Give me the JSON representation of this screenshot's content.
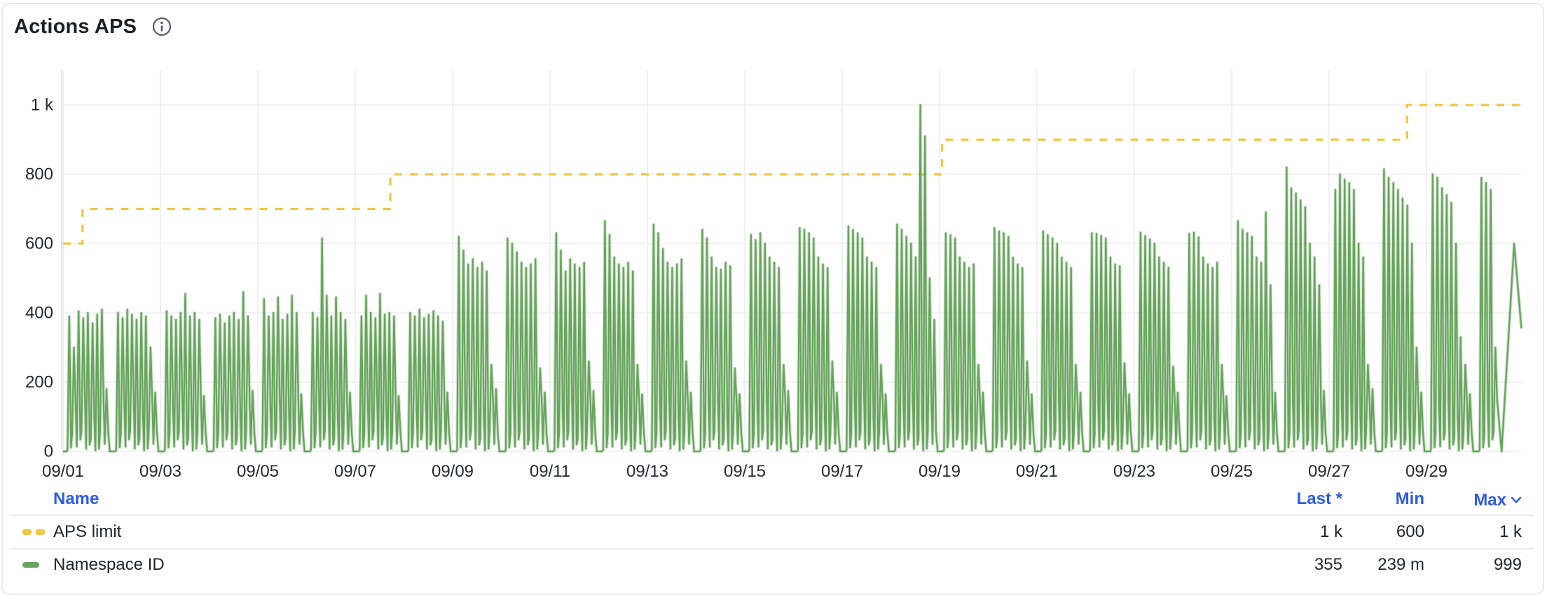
{
  "panel": {
    "title": "Actions APS",
    "info_icon": "info-circle-icon"
  },
  "colors": {
    "aps_limit": "#eec83f",
    "namespace_id": "#68a45e",
    "header_blue": "#2d5ce5",
    "grid": "#ebedf0",
    "axis_line": "#e3e5e8",
    "text_dark": "#242930",
    "card_border": "#e7e9ec"
  },
  "chart_data": {
    "type": "line",
    "title": "Actions APS",
    "grid": true,
    "x_axis": {
      "tick_labels": [
        "09/01",
        "09/03",
        "09/05",
        "09/07",
        "09/09",
        "09/11",
        "09/13",
        "09/15",
        "09/17",
        "09/19",
        "09/21",
        "09/23",
        "09/25",
        "09/27",
        "09/29"
      ],
      "days_per_tick": 2,
      "t_start": 0,
      "t_end": 29.95
    },
    "y_axis": {
      "tick_labels": [
        "0",
        "200",
        "400",
        "600",
        "800",
        "1 k"
      ],
      "tick_values": [
        0,
        200,
        400,
        600,
        800,
        1000
      ],
      "ylim": [
        0,
        1100
      ]
    },
    "series": [
      {
        "name": "APS limit",
        "type": "step",
        "style": "dashed",
        "color": "#eec83f",
        "steps": [
          {
            "t": 0.0,
            "value": 600
          },
          {
            "t": 0.4,
            "value": 700
          },
          {
            "t": 6.72,
            "value": 800
          },
          {
            "t": 18.05,
            "value": 900
          },
          {
            "t": 27.6,
            "value": 1000
          }
        ],
        "t_end": 29.95,
        "last": "1 k",
        "min": "600",
        "max": "1 k"
      },
      {
        "name": "Namespace ID",
        "type": "spiky-line",
        "color": "#68a45e",
        "cluster_span": 0.86,
        "valleys": [
          12,
          130,
          35,
          150,
          20,
          95,
          8,
          140,
          55
        ],
        "daily_peaks": [
          [
            390,
            300,
            405,
            385,
            400,
            370,
            395,
            410,
            180
          ],
          [
            400,
            385,
            410,
            395,
            380,
            400,
            390,
            300,
            170
          ],
          [
            405,
            390,
            380,
            400,
            455,
            390,
            400,
            380,
            160
          ],
          [
            385,
            395,
            370,
            390,
            400,
            380,
            460,
            390,
            175
          ],
          [
            440,
            390,
            400,
            445,
            380,
            395,
            450,
            400,
            165
          ],
          [
            400,
            385,
            615,
            450,
            390,
            445,
            400,
            380,
            170
          ],
          [
            390,
            450,
            400,
            385,
            455,
            395,
            400,
            390,
            160
          ],
          [
            400,
            390,
            410,
            385,
            395,
            405,
            390,
            375,
            170
          ],
          [
            620,
            580,
            540,
            555,
            530,
            545,
            520,
            250,
            180
          ],
          [
            615,
            600,
            575,
            545,
            530,
            540,
            555,
            240,
            170
          ],
          [
            630,
            580,
            520,
            555,
            540,
            530,
            545,
            260,
            175
          ],
          [
            665,
            625,
            560,
            540,
            530,
            545,
            520,
            250,
            165
          ],
          [
            655,
            630,
            585,
            545,
            530,
            540,
            555,
            260,
            170
          ],
          [
            640,
            615,
            560,
            530,
            525,
            545,
            535,
            240,
            165
          ],
          [
            625,
            610,
            630,
            600,
            560,
            545,
            530,
            250,
            175
          ],
          [
            645,
            640,
            630,
            615,
            560,
            540,
            530,
            260,
            170
          ],
          [
            650,
            640,
            630,
            615,
            560,
            545,
            530,
            250,
            165
          ],
          [
            655,
            640,
            620,
            600,
            560,
            1000,
            910,
            500,
            380
          ],
          [
            630,
            625,
            615,
            560,
            545,
            530,
            540,
            250,
            170
          ],
          [
            645,
            635,
            630,
            620,
            560,
            540,
            530,
            260,
            165
          ],
          [
            635,
            625,
            615,
            600,
            560,
            545,
            530,
            250,
            170
          ],
          [
            630,
            628,
            622,
            615,
            560,
            540,
            535,
            255,
            165
          ],
          [
            632,
            622,
            612,
            600,
            560,
            545,
            530,
            245,
            170
          ],
          [
            628,
            632,
            618,
            560,
            540,
            530,
            545,
            250,
            160
          ],
          [
            665,
            640,
            630,
            620,
            560,
            545,
            690,
            480,
            170
          ],
          [
            820,
            760,
            745,
            725,
            705,
            600,
            560,
            480,
            175
          ],
          [
            755,
            800,
            785,
            775,
            755,
            600,
            560,
            250,
            180
          ],
          [
            815,
            790,
            775,
            755,
            730,
            710,
            600,
            300,
            170
          ],
          [
            800,
            790,
            760,
            740,
            718,
            600,
            330,
            250,
            165
          ],
          [
            790,
            775,
            755,
            300
          ]
        ],
        "tail": [
          [
            29.8,
            600
          ],
          [
            29.95,
            355
          ]
        ],
        "last": "355",
        "min": "239 m",
        "max": "999"
      }
    ]
  },
  "legend": {
    "headers": {
      "name": "Name",
      "last": "Last *",
      "min": "Min",
      "max": "Max"
    },
    "sort_column": "Max",
    "sort_icon": "chevron-down-icon",
    "rows": [
      {
        "name": "APS limit",
        "last": "1 k",
        "min": "600",
        "max": "1 k",
        "swatch": "yellow-dashed"
      },
      {
        "name": "Namespace ID",
        "last": "355",
        "min": "239 m",
        "max": "999",
        "swatch": "green-solid"
      }
    ]
  }
}
